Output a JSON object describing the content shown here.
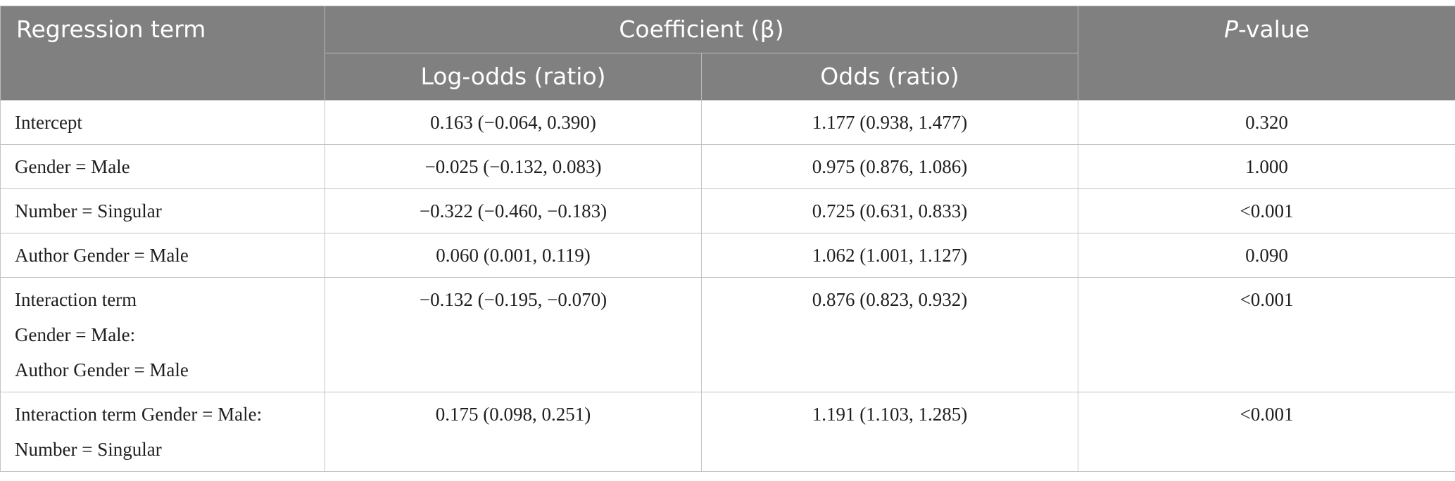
{
  "table": {
    "headers": {
      "term": "Regression term",
      "coefficient": "Coefficient (β)",
      "log_odds": "Log-odds (ratio)",
      "odds": "Odds (ratio)",
      "p_value_italic": "P",
      "p_value_rest": "-value"
    },
    "rows": [
      {
        "term_lines": [
          "Intercept"
        ],
        "log_odds": "0.163 (−0.064, 0.390)",
        "odds": "1.177 (0.938, 1.477)",
        "p_value": "0.320"
      },
      {
        "term_lines": [
          "Gender = Male"
        ],
        "log_odds": "−0.025 (−0.132, 0.083)",
        "odds": "0.975 (0.876, 1.086)",
        "p_value": "1.000"
      },
      {
        "term_lines": [
          "Number = Singular"
        ],
        "log_odds": "−0.322 (−0.460, −0.183)",
        "odds": "0.725 (0.631, 0.833)",
        "p_value": "<0.001"
      },
      {
        "term_lines": [
          "Author Gender = Male"
        ],
        "log_odds": "0.060 (0.001, 0.119)",
        "odds": "1.062 (1.001, 1.127)",
        "p_value": "0.090"
      },
      {
        "term_lines": [
          "Interaction term",
          "Gender = Male:",
          "Author Gender = Male"
        ],
        "log_odds": "−0.132 (−0.195, −0.070)",
        "odds": "0.876 (0.823, 0.932)",
        "p_value": "<0.001"
      },
      {
        "term_lines": [
          "Interaction term Gender = Male:",
          "Number = Singular"
        ],
        "log_odds": "0.175 (0.098, 0.251)",
        "odds": "1.191 (1.103, 1.285)",
        "p_value": "<0.001"
      }
    ]
  }
}
